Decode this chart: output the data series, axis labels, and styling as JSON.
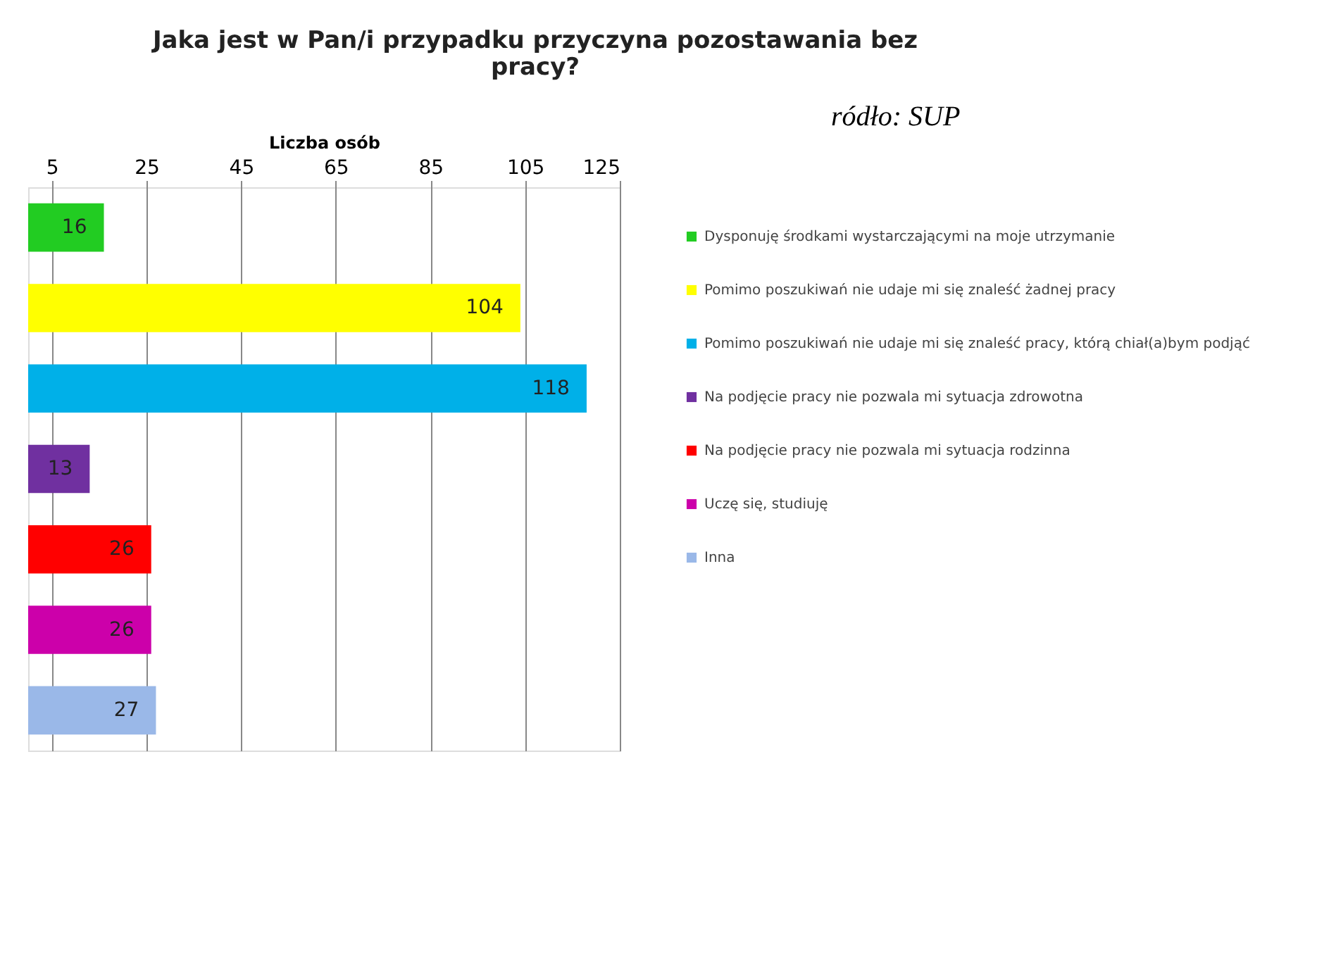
{
  "chart_data": {
    "type": "bar",
    "orientation": "horizontal",
    "title": "Jaka jest w Pan/i przypadku przyczyna pozostawania bez pracy?",
    "xlabel": "Liczba osób",
    "categories": [
      null,
      null,
      null,
      null,
      null,
      null,
      null
    ],
    "series": [
      {
        "name": "Dysponuję środkami wystarczającymi na moje utrzymanie",
        "color": "#22cc22",
        "values": [
          16,
          null,
          null,
          null,
          null,
          null,
          null
        ]
      },
      {
        "name": "Pomimo poszukiwań nie udaje mi się znaleść żadnej pracy",
        "color": "#ffff00",
        "values": [
          null,
          104,
          null,
          null,
          null,
          null,
          null
        ]
      },
      {
        "name": "Pomimo poszukiwań nie udaje mi się znaleść pracy, którą chiał(a)bym podjąć",
        "color": "#00b0e8",
        "values": [
          null,
          null,
          118,
          null,
          null,
          null,
          null
        ]
      },
      {
        "name": "Na podjęcie pracy nie pozwala mi sytuacja zdrowotna",
        "color": "#7030a0",
        "values": [
          null,
          null,
          null,
          13,
          null,
          null,
          null
        ]
      },
      {
        "name": "Na podjęcie pracy nie pozwala mi sytuacja rodzinna",
        "color": "#ff0000",
        "values": [
          null,
          null,
          null,
          null,
          26,
          null,
          null
        ]
      },
      {
        "name": "Uczę się, studiuję",
        "color": "#cc00aa",
        "values": [
          null,
          null,
          null,
          null,
          null,
          26,
          null
        ]
      },
      {
        "name": "Inna",
        "color": "#9ab8e8",
        "values": [
          null,
          null,
          null,
          null,
          null,
          null,
          27
        ]
      }
    ],
    "xlim": [
      0,
      125
    ],
    "xticks": [
      5,
      25,
      45,
      65,
      85,
      105,
      125
    ],
    "grid": "x",
    "legend": "right",
    "tick_labels": "x",
    "data_labels": true,
    "annotations": [
      "ródło: SUP"
    ]
  }
}
